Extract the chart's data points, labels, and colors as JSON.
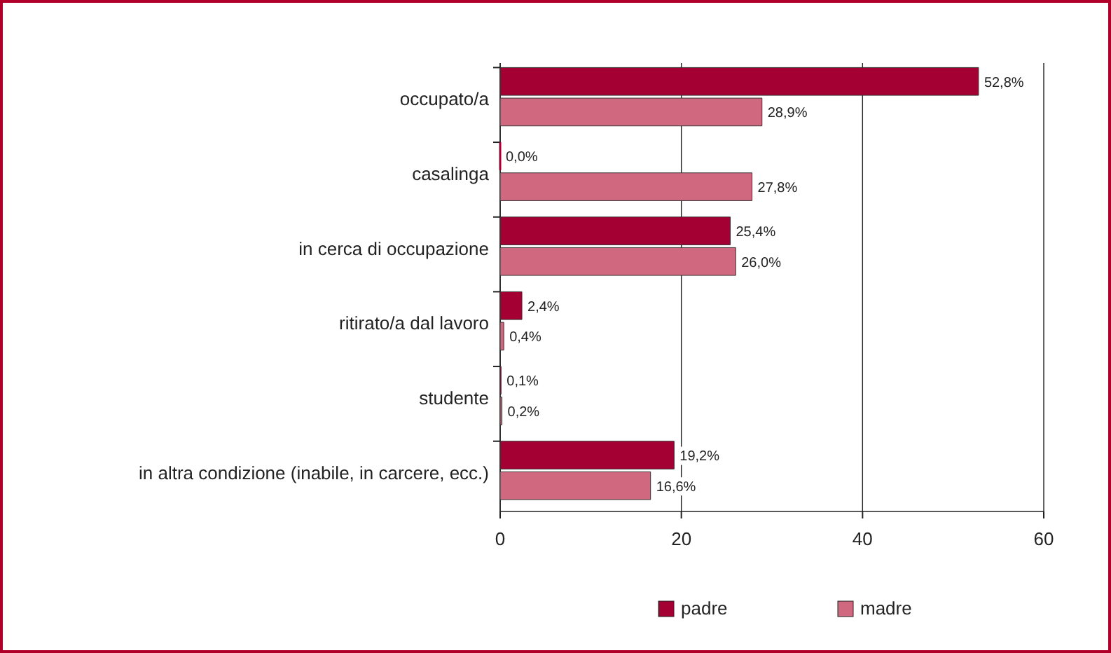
{
  "chart_data": {
    "type": "bar",
    "orientation": "horizontal",
    "categories": [
      "occupato/a",
      "casalinga",
      "in cerca di occupazione",
      "ritirato/a dal lavoro",
      "studente",
      "in altra condizione (inabile, in carcere, ecc.)"
    ],
    "series": [
      {
        "name": "padre",
        "color": "#a50034",
        "values": [
          52.8,
          0.0,
          25.4,
          2.4,
          0.1,
          19.2
        ],
        "value_labels": [
          "52,8%",
          "0,0%",
          "25,4%",
          "2,4%",
          "0,1%",
          "19,2%"
        ]
      },
      {
        "name": "madre",
        "color": "#d0687f",
        "values": [
          28.9,
          27.8,
          26.0,
          0.4,
          0.2,
          16.6
        ],
        "value_labels": [
          "28,9%",
          "27,8%",
          "26,0%",
          "0,4%",
          "0,2%",
          "16,6%"
        ]
      }
    ],
    "xlim": [
      0,
      60
    ],
    "xticks": [
      0,
      20,
      40,
      60
    ],
    "grid": "x",
    "legend": "bottom"
  }
}
